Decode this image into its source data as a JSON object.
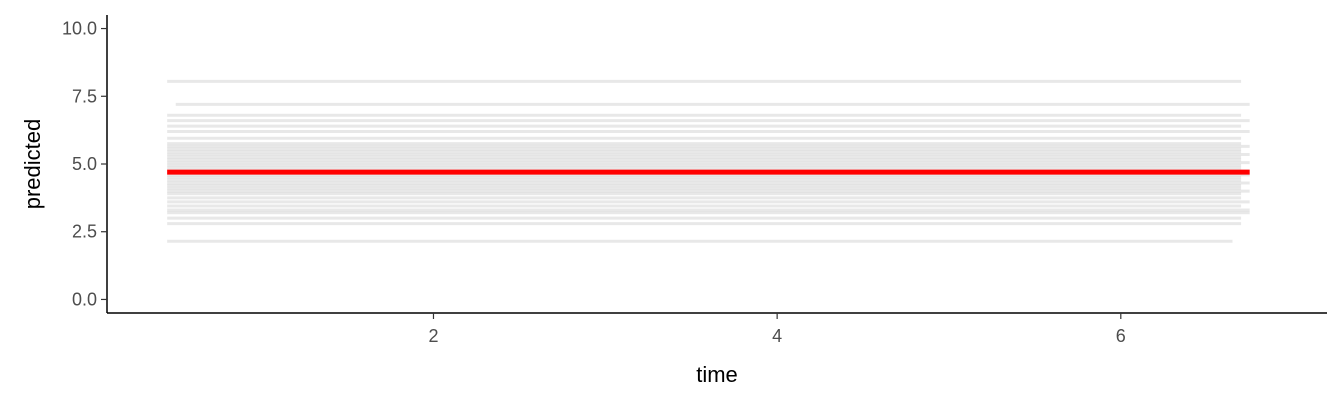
{
  "chart_data": {
    "type": "line",
    "xlabel": "time",
    "ylabel": "predicted",
    "xlim": [
      0.1,
      7.2
    ],
    "ylim": [
      -0.5,
      10.5
    ],
    "x_ticks": [
      2,
      4,
      6
    ],
    "x_tick_labels": [
      "2",
      "4",
      "6"
    ],
    "y_ticks": [
      0,
      2.5,
      5,
      7.5,
      10
    ],
    "y_tick_labels": [
      "0.0",
      "2.5",
      "5.0",
      "7.5",
      "10.0"
    ],
    "grid": false,
    "legend": "none",
    "mean_line": {
      "y": 4.7,
      "x": [
        0.45,
        6.75
      ],
      "color": "#ff0000"
    },
    "individual_lines": {
      "color": "#bdbdbd",
      "lines": [
        {
          "y": 8.05,
          "x": [
            0.45,
            6.7
          ]
        },
        {
          "y": 7.2,
          "x": [
            0.5,
            6.75
          ]
        },
        {
          "y": 6.8,
          "x": [
            0.45,
            6.7
          ]
        },
        {
          "y": 6.6,
          "x": [
            0.45,
            6.75
          ]
        },
        {
          "y": 6.4,
          "x": [
            0.45,
            6.7
          ]
        },
        {
          "y": 6.2,
          "x": [
            0.45,
            6.75
          ]
        },
        {
          "y": 5.95,
          "x": [
            0.45,
            6.7
          ]
        },
        {
          "y": 5.75,
          "x": [
            0.45,
            6.7
          ]
        },
        {
          "y": 5.65,
          "x": [
            0.45,
            6.75
          ]
        },
        {
          "y": 5.55,
          "x": [
            0.45,
            6.7
          ]
        },
        {
          "y": 5.45,
          "x": [
            0.45,
            6.7
          ]
        },
        {
          "y": 5.35,
          "x": [
            0.45,
            6.75
          ]
        },
        {
          "y": 5.25,
          "x": [
            0.45,
            6.7
          ]
        },
        {
          "y": 5.15,
          "x": [
            0.45,
            6.7
          ]
        },
        {
          "y": 5.05,
          "x": [
            0.45,
            6.75
          ]
        },
        {
          "y": 4.95,
          "x": [
            0.45,
            6.7
          ]
        },
        {
          "y": 4.85,
          "x": [
            0.45,
            6.7
          ]
        },
        {
          "y": 4.6,
          "x": [
            0.45,
            6.75
          ]
        },
        {
          "y": 4.5,
          "x": [
            0.45,
            6.7
          ]
        },
        {
          "y": 4.4,
          "x": [
            0.45,
            6.7
          ]
        },
        {
          "y": 4.3,
          "x": [
            0.45,
            6.75
          ]
        },
        {
          "y": 4.2,
          "x": [
            0.45,
            6.7
          ]
        },
        {
          "y": 4.1,
          "x": [
            0.45,
            6.7
          ]
        },
        {
          "y": 4.0,
          "x": [
            0.45,
            6.75
          ]
        },
        {
          "y": 3.9,
          "x": [
            0.45,
            6.7
          ]
        },
        {
          "y": 3.75,
          "x": [
            0.45,
            6.7
          ]
        },
        {
          "y": 3.6,
          "x": [
            0.45,
            6.75
          ]
        },
        {
          "y": 3.45,
          "x": [
            0.45,
            6.7
          ]
        },
        {
          "y": 3.3,
          "x": [
            0.45,
            6.75
          ]
        },
        {
          "y": 3.2,
          "x": [
            0.45,
            6.75
          ]
        },
        {
          "y": 3.0,
          "x": [
            0.45,
            6.7
          ]
        },
        {
          "y": 2.8,
          "x": [
            0.45,
            6.7
          ]
        },
        {
          "y": 2.15,
          "x": [
            0.45,
            6.65
          ]
        }
      ]
    }
  }
}
